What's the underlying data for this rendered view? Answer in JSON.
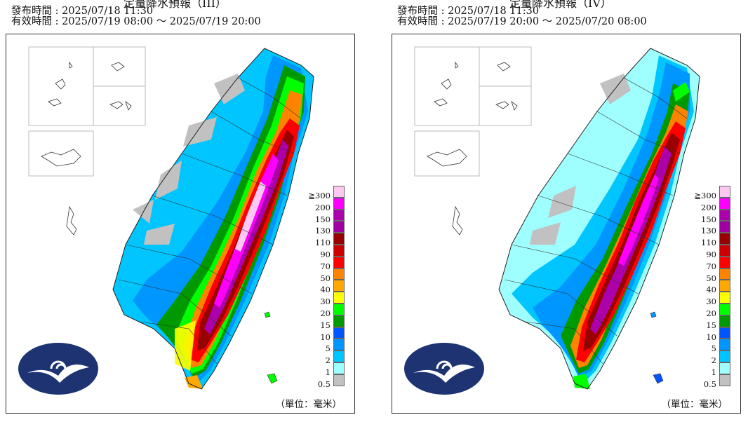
{
  "panels": [
    {
      "title_fragment": "定量降水預報（III）",
      "issue_label": "發布時間 : ",
      "issue_time": "2025/07/18 11:30",
      "valid_label": "有效時間 : ",
      "valid_time": "2025/07/19 08:00 ～ 2025/07/19 20:00",
      "unit": "（單位：毫米）"
    },
    {
      "title_fragment": "定量降水預報（IV）",
      "issue_label": "發布時間 : ",
      "issue_time": "2025/07/18 11:30",
      "valid_label": "有效時間 : ",
      "valid_time": "2025/07/19 20:00 ～ 2025/07/20 08:00",
      "unit": "（單位：毫米）"
    }
  ],
  "legend": [
    {
      "label": "≧300",
      "color": "#fdc8f2"
    },
    {
      "label": "200",
      "color": "#fc00fc"
    },
    {
      "label": "150",
      "color": "#ad00ad"
    },
    {
      "label": "130",
      "color": "#9f00a0"
    },
    {
      "label": "110",
      "color": "#990000"
    },
    {
      "label": "90",
      "color": "#cc0000"
    },
    {
      "label": "70",
      "color": "#fe0000"
    },
    {
      "label": "50",
      "color": "#fe8400"
    },
    {
      "label": "40",
      "color": "#fea800"
    },
    {
      "label": "30",
      "color": "#fefe00"
    },
    {
      "label": "20",
      "color": "#01fe01"
    },
    {
      "label": "15",
      "color": "#009a00"
    },
    {
      "label": "10",
      "color": "#0055ff"
    },
    {
      "label": "5",
      "color": "#0096ff"
    },
    {
      "label": "2",
      "color": "#00c5ff"
    },
    {
      "label": "1",
      "color": "#9ffffe"
    },
    {
      "label": "0.5",
      "color": "#c1c1c1"
    }
  ],
  "colors": {
    "sea": "#ffffff",
    "land": "#f4f8fa",
    "logo": "#1e3372"
  }
}
